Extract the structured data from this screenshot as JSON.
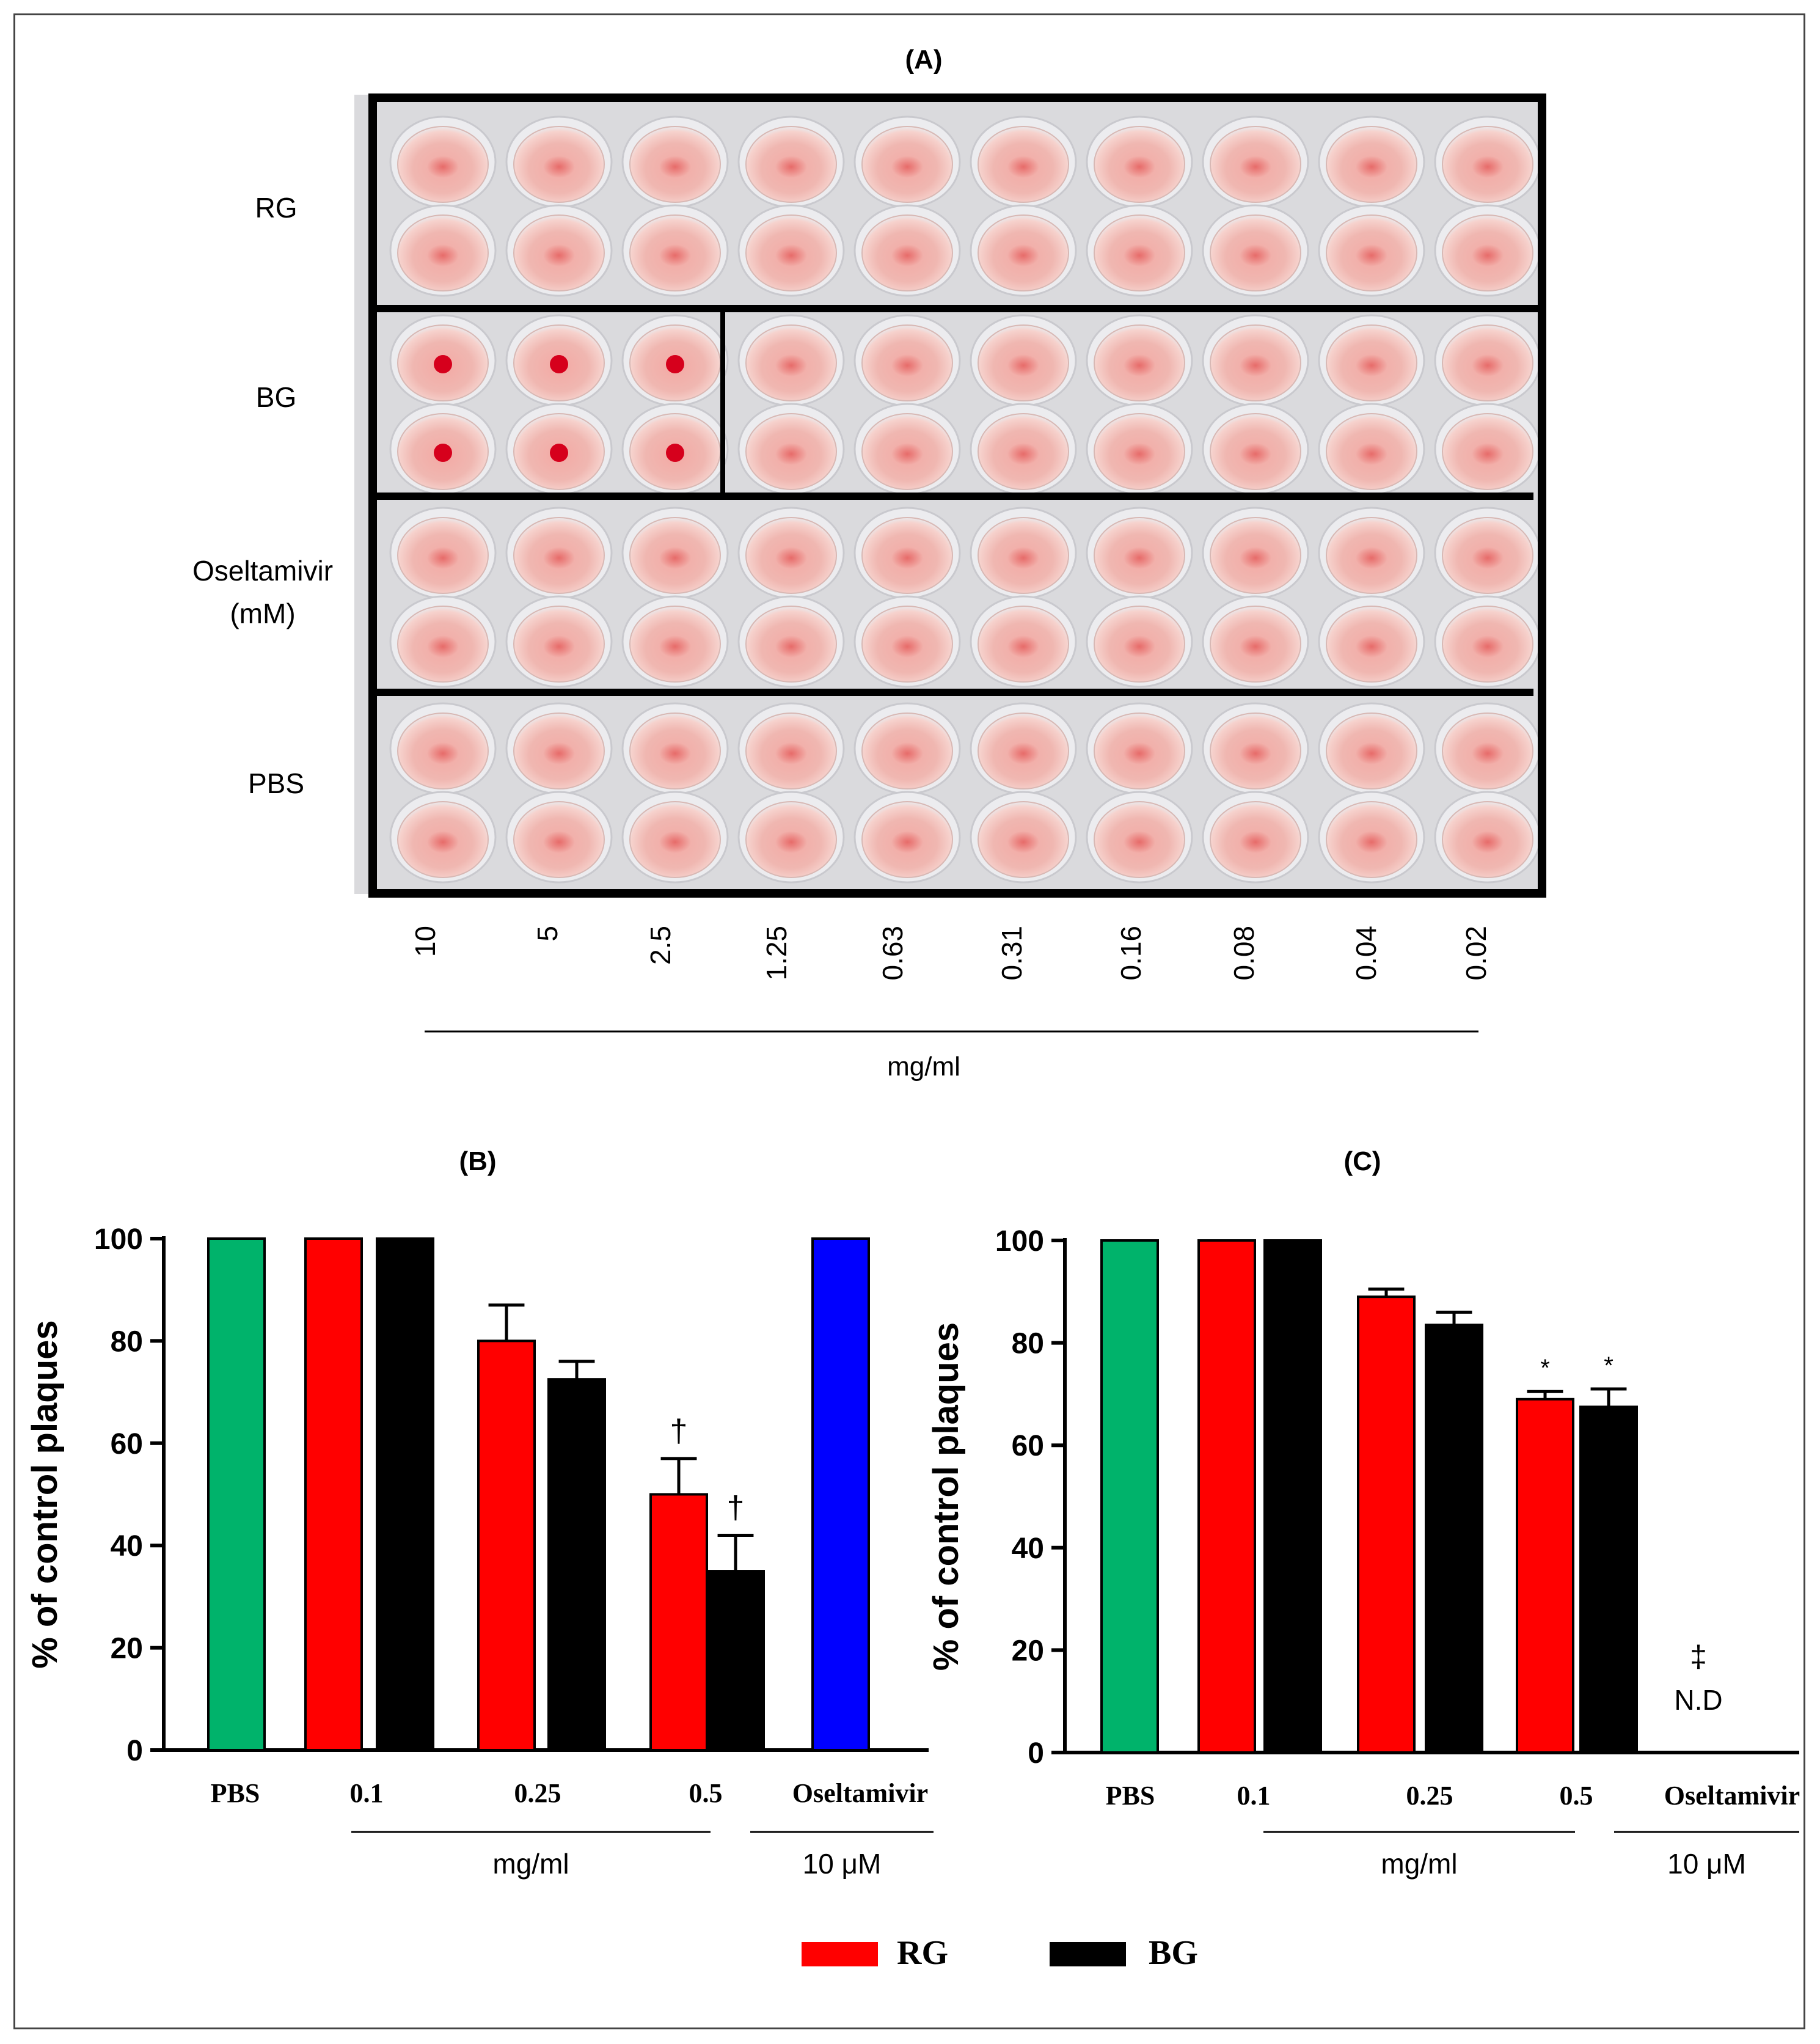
{
  "panel_a": {
    "label": "(A)",
    "rows": [
      {
        "name": "RG",
        "sub": ""
      },
      {
        "name": "BG",
        "sub": ""
      },
      {
        "name": "Oseltamivir",
        "sub": "(mM)"
      },
      {
        "name": "PBS",
        "sub": ""
      }
    ],
    "concentrations": [
      "10",
      "5",
      "2.5",
      "1.25",
      "0.63",
      "0.31",
      "0.16",
      "0.08",
      "0.04",
      "0.02"
    ],
    "unit": "mg/ml",
    "bg_pellet_wells": 3
  },
  "colors": {
    "PBS": "#00b36b",
    "RG": "#ff0000",
    "BG": "#000000",
    "Oseltamivir": "#0000ff"
  },
  "chart_data": [
    {
      "type": "bar",
      "title": "(B)",
      "ylabel": "% of control plaques",
      "ylim": [
        0,
        100
      ],
      "yticks": [
        0,
        20,
        40,
        60,
        80,
        100
      ],
      "categories": [
        "PBS",
        "0.1",
        "0.25",
        "0.5",
        "Oseltamivir"
      ],
      "group_label_unit": "mg/ml",
      "group_label_dose": "10 μM",
      "bars": [
        {
          "category": "PBS",
          "series": "PBS",
          "value": 100,
          "error": 0,
          "mark": ""
        },
        {
          "category": "0.1",
          "series": "RG",
          "value": 100,
          "error": 0,
          "mark": ""
        },
        {
          "category": "0.1",
          "series": "BG",
          "value": 100,
          "error": 0,
          "mark": ""
        },
        {
          "category": "0.25",
          "series": "RG",
          "value": 80,
          "error": 7,
          "mark": ""
        },
        {
          "category": "0.25",
          "series": "BG",
          "value": 72.5,
          "error": 3.5,
          "mark": ""
        },
        {
          "category": "0.5",
          "series": "RG",
          "value": 50,
          "error": 7,
          "mark": "†"
        },
        {
          "category": "0.5",
          "series": "BG",
          "value": 35,
          "error": 7,
          "mark": "†"
        },
        {
          "category": "Oseltamivir",
          "series": "Oseltamivir",
          "value": 100,
          "error": 0,
          "mark": ""
        }
      ]
    },
    {
      "type": "bar",
      "title": "(C)",
      "ylabel": "% of control plaques",
      "ylim": [
        0,
        100
      ],
      "yticks": [
        0,
        20,
        40,
        60,
        80,
        100
      ],
      "categories": [
        "PBS",
        "0.1",
        "0.25",
        "0.5",
        "Oseltamivir"
      ],
      "group_label_unit": "mg/ml",
      "group_label_dose": "10 μM",
      "bars": [
        {
          "category": "PBS",
          "series": "PBS",
          "value": 100,
          "error": 0,
          "mark": ""
        },
        {
          "category": "0.1",
          "series": "RG",
          "value": 100,
          "error": 0,
          "mark": ""
        },
        {
          "category": "0.1",
          "series": "BG",
          "value": 100,
          "error": 0,
          "mark": ""
        },
        {
          "category": "0.25",
          "series": "RG",
          "value": 89,
          "error": 1.5,
          "mark": ""
        },
        {
          "category": "0.25",
          "series": "BG",
          "value": 83.5,
          "error": 2.5,
          "mark": ""
        },
        {
          "category": "0.5",
          "series": "RG",
          "value": 69,
          "error": 1.5,
          "mark": "*"
        },
        {
          "category": "0.5",
          "series": "BG",
          "value": 67.5,
          "error": 3.5,
          "mark": "*"
        },
        {
          "category": "Oseltamivir",
          "series": "Oseltamivir",
          "value": 0,
          "error": 0,
          "mark": ""
        }
      ],
      "annotation_mark": "‡",
      "annotation_text": "N.D"
    }
  ],
  "legend": [
    {
      "name": "RG",
      "color": "#ff0000"
    },
    {
      "name": "BG",
      "color": "#000000"
    }
  ]
}
